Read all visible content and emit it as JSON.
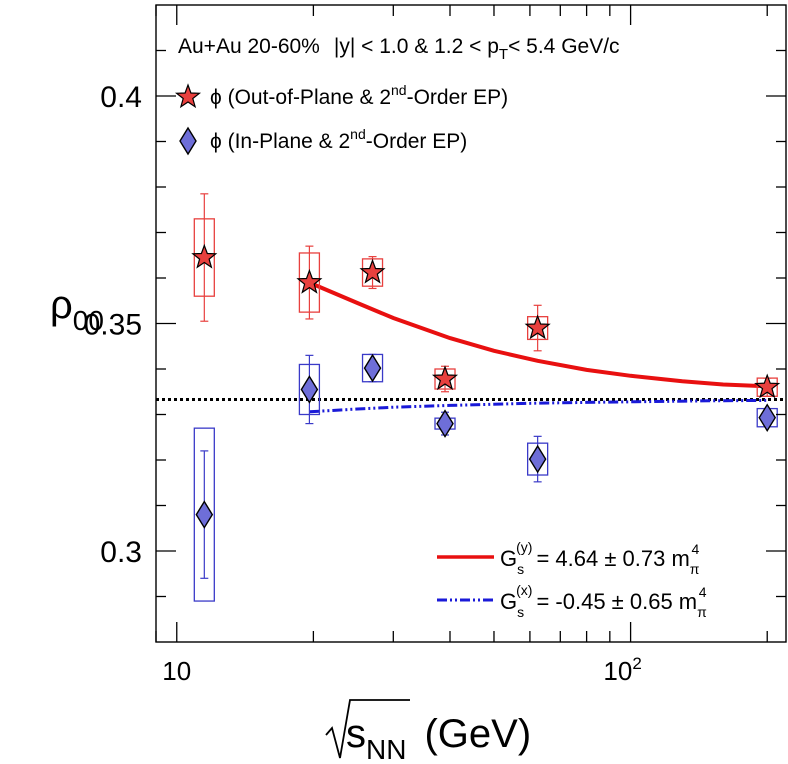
{
  "chart_data": {
    "type": "scatter",
    "xscale": "log",
    "xlim": [
      9,
      220
    ],
    "ylim": [
      0.28,
      0.42
    ],
    "xlabel": {
      "base": "s",
      "sub": "NN",
      "unit": "(GeV)"
    },
    "ylabel": {
      "base": "ρ",
      "sub": "00"
    },
    "x_ticks": [
      {
        "value": 10,
        "label": "10"
      },
      {
        "value": 100,
        "label": "10",
        "sup": "2"
      }
    ],
    "y_ticks": [
      {
        "value": 0.3,
        "label": "0.3"
      },
      {
        "value": 0.35,
        "label": "0.35"
      },
      {
        "value": 0.4,
        "label": "0.4"
      }
    ],
    "header": {
      "system": "Au+Au 20-60%",
      "rapidity": "|y| < 1.0 & 1.2 < p",
      "pt_sub": "T",
      "pt_range": "< 5.4 GeV/c"
    },
    "reference_line": {
      "y": 0.3333,
      "style": "dotted",
      "color": "#000000"
    },
    "series": [
      {
        "name": "ϕ (Out-of-Plane & 2",
        "name_sup": "nd",
        "name_tail": "-Order EP)",
        "marker": "star",
        "color": "#e8403e",
        "box_color": "#e8403e",
        "points": [
          {
            "x": 11.5,
            "y": 0.3645,
            "stat": 0.014,
            "sys": 0.0085
          },
          {
            "x": 19.6,
            "y": 0.359,
            "stat": 0.008,
            "sys": 0.0065
          },
          {
            "x": 27.0,
            "y": 0.3612,
            "stat": 0.0035,
            "sys": 0.003
          },
          {
            "x": 39.0,
            "y": 0.3378,
            "stat": 0.0028,
            "sys": 0.0022
          },
          {
            "x": 62.4,
            "y": 0.349,
            "stat": 0.005,
            "sys": 0.0025
          },
          {
            "x": 200.0,
            "y": 0.336,
            "stat": 0.002,
            "sys": 0.002
          }
        ]
      },
      {
        "name": "ϕ (In-Plane & 2",
        "name_sup": "nd",
        "name_tail": "-Order EP)",
        "marker": "diamond",
        "color": "#6e6ed8",
        "box_color": "#3a3ac8",
        "points": [
          {
            "x": 11.5,
            "y": 0.308,
            "stat": 0.014,
            "sys": 0.019
          },
          {
            "x": 19.6,
            "y": 0.3355,
            "stat": 0.0075,
            "sys": 0.0055
          },
          {
            "x": 27.0,
            "y": 0.3402,
            "stat": 0.003,
            "sys": 0.003
          },
          {
            "x": 39.0,
            "y": 0.328,
            "stat": 0.0025,
            "sys": 0.0012
          },
          {
            "x": 62.4,
            "y": 0.3202,
            "stat": 0.005,
            "sys": 0.0035
          },
          {
            "x": 200.0,
            "y": 0.3293,
            "stat": 0.0015,
            "sys": 0.002
          }
        ]
      }
    ],
    "fits": [
      {
        "label": "G",
        "label_sub": "s",
        "label_sup": "(y)",
        "label_value": "= 4.64 ± 0.73 m",
        "label_m_sub": "π",
        "label_m_sup": "4",
        "color": "#e81010",
        "style": "solid",
        "curve": [
          [
            19.6,
            0.359
          ],
          [
            25,
            0.3545
          ],
          [
            30,
            0.3512
          ],
          [
            40,
            0.3468
          ],
          [
            50,
            0.344
          ],
          [
            62.4,
            0.3418
          ],
          [
            80,
            0.3398
          ],
          [
            100,
            0.3385
          ],
          [
            130,
            0.3373
          ],
          [
            160,
            0.3366
          ],
          [
            200,
            0.3362
          ]
        ]
      },
      {
        "label": "G",
        "label_sub": "s",
        "label_sup": "(x)",
        "label_value": "= -0.45 ± 0.65 m",
        "label_m_sub": "π",
        "label_m_sup": "4",
        "color": "#1a1ad8",
        "style": "dashdot",
        "curve": [
          [
            19.6,
            0.3306
          ],
          [
            25,
            0.3312
          ],
          [
            30,
            0.3316
          ],
          [
            40,
            0.332
          ],
          [
            62.4,
            0.3325
          ],
          [
            100,
            0.3328
          ],
          [
            150,
            0.333
          ],
          [
            200,
            0.3331
          ]
        ]
      }
    ]
  }
}
